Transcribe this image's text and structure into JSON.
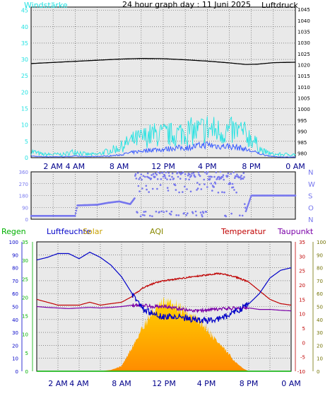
{
  "title": "24 hour graph day : 11 Juni 2025",
  "colors": {
    "plot_bg": "#e9e9e9",
    "grid": "#4a4a4a",
    "wind_avg": "#3a5cff",
    "wind_gust": "#22e2e2",
    "pressure": "#000000",
    "direction": "#7777ee",
    "humidity": "#0000c8",
    "temperature": "#c00000",
    "dewpoint": "#7a00a8",
    "solar_top": "#ffd400",
    "solar_bottom": "#ff8c00",
    "rain": "#00b000",
    "aqi": "#888800"
  },
  "chart_data": [
    {
      "type": "line",
      "name": "wind-pressure",
      "legend": {
        "left": "Windstärke",
        "right": "Luftdruck"
      },
      "x_tick_labels": [
        "2 AM",
        "4 AM",
        "8 AM",
        "12 PM",
        "4 PM",
        "8 PM",
        "0 AM"
      ],
      "left_axis": {
        "ticks": [
          0,
          5,
          10,
          15,
          20,
          25,
          30,
          35,
          40,
          45
        ],
        "range": [
          0,
          46
        ]
      },
      "right_axis": {
        "ticks": [
          980,
          985,
          990,
          995,
          1000,
          1005,
          1010,
          1015,
          1020,
          1025,
          1030,
          1035,
          1040,
          1045
        ],
        "range": [
          978,
          1046
        ]
      },
      "grid": true,
      "series": [
        {
          "name": "Luftdruck",
          "axis": "right",
          "x": [
            0,
            2,
            4,
            6,
            8,
            10,
            12,
            14,
            16,
            18,
            19.5,
            20.5,
            22,
            24
          ],
          "values": [
            1020.5,
            1021,
            1021.5,
            1022,
            1022.5,
            1022.8,
            1022.7,
            1022.2,
            1021.6,
            1020.8,
            1020.1,
            1020.2,
            1020.9,
            1021.1
          ]
        },
        {
          "name": "Böen",
          "axis": "left",
          "x": [
            0,
            1,
            2,
            3,
            4,
            5,
            6,
            7,
            8,
            9,
            10,
            11,
            12,
            13,
            14,
            15,
            16,
            17,
            18,
            19,
            20,
            21,
            22,
            23,
            24
          ],
          "values": [
            2,
            1,
            1,
            1,
            2,
            1,
            1,
            2,
            3,
            5,
            6,
            7,
            7,
            7,
            8,
            8,
            9,
            8,
            8,
            8,
            6,
            2,
            1,
            1,
            1
          ]
        },
        {
          "name": "Mittel",
          "axis": "left",
          "x": [
            0,
            1,
            2,
            3,
            4,
            5,
            6,
            7,
            8,
            9,
            10,
            11,
            12,
            13,
            14,
            15,
            16,
            17,
            18,
            19,
            20,
            21,
            22,
            23,
            24
          ],
          "values": [
            0.5,
            0.3,
            0.3,
            0.3,
            0.5,
            0.3,
            0.4,
            0.5,
            0.8,
            1.5,
            2,
            2.5,
            2.5,
            3,
            3,
            3.5,
            4,
            3.5,
            3.5,
            3,
            2,
            1,
            0.3,
            0.2,
            0.2
          ]
        }
      ]
    },
    {
      "type": "scatter",
      "name": "wind-direction",
      "x_tick_labels": [],
      "left_axis": {
        "ticks": [
          0,
          90,
          180,
          270,
          360
        ],
        "range": [
          0,
          360
        ]
      },
      "right_labels": [
        "N",
        "W",
        "S",
        "O",
        "N"
      ],
      "grid": true,
      "x": [
        0,
        2,
        4,
        4.2,
        6,
        7,
        8,
        9,
        9.5,
        10,
        10.5,
        11,
        11.5,
        12,
        13,
        14,
        15,
        16,
        17,
        18,
        19,
        19.5,
        20,
        21,
        22,
        24
      ],
      "values": [
        25,
        25,
        25,
        105,
        110,
        125,
        135,
        115,
        170,
        200,
        100,
        300,
        340,
        335,
        340,
        325,
        335,
        330,
        340,
        320,
        335,
        60,
        180,
        180,
        180,
        180
      ]
    },
    {
      "type": "area",
      "name": "weather-overview",
      "legend": [
        "Regen",
        "Luftfeuchte",
        "Solar",
        "AQI",
        "Temperatur",
        "Taupunkt"
      ],
      "x_tick_labels": [
        "2 AM",
        "4 AM",
        "8 AM",
        "12 PM",
        "4 PM",
        "8 PM",
        "0 AM"
      ],
      "left_axis_humidity": {
        "ticks": [
          0,
          10,
          20,
          30,
          40,
          50,
          60,
          70,
          80,
          90,
          100
        ],
        "range": [
          0,
          100
        ]
      },
      "left_axis_rain": {
        "ticks": [
          0,
          5,
          10,
          15,
          20,
          25,
          30,
          35
        ],
        "range": [
          0,
          35
        ]
      },
      "right_axis_temp": {
        "ticks": [
          -10,
          -5,
          0,
          5,
          10,
          15,
          20,
          25,
          30,
          35
        ],
        "range": [
          -10,
          35
        ]
      },
      "right_axis_solar": {
        "ticks": [
          0,
          10,
          20,
          30,
          40,
          50,
          60,
          70,
          80,
          90,
          100
        ],
        "range": [
          0,
          100
        ]
      },
      "grid": true,
      "series": [
        {
          "name": "Luftfeuchte",
          "x": [
            0,
            1,
            2,
            3,
            4,
            5,
            6,
            7,
            8,
            9,
            10,
            11,
            12,
            13,
            14,
            15,
            16,
            17,
            18,
            19,
            20,
            21,
            22,
            23,
            24
          ],
          "values": [
            86,
            88,
            91,
            91,
            87,
            92,
            88,
            82,
            73,
            60,
            48,
            44,
            42,
            43,
            41,
            40,
            39,
            40,
            43,
            47,
            52,
            60,
            72,
            78,
            80
          ]
        },
        {
          "name": "Temperatur",
          "x": [
            0,
            1,
            2,
            3,
            4,
            5,
            6,
            7,
            8,
            9,
            10,
            11,
            12,
            13,
            14,
            15,
            16,
            17,
            18,
            19,
            20,
            21,
            22,
            23,
            24
          ],
          "values": [
            15,
            14,
            13,
            13,
            13,
            14,
            13,
            13.5,
            14,
            16,
            19,
            20.5,
            21.5,
            22,
            22.5,
            23,
            23.5,
            24,
            23.5,
            22.5,
            21,
            18,
            15,
            13.5,
            13
          ]
        },
        {
          "name": "Taupunkt",
          "x": [
            0,
            1,
            2,
            3,
            4,
            5,
            6,
            7,
            8,
            9,
            10,
            11,
            12,
            13,
            14,
            15,
            16,
            17,
            18,
            19,
            20,
            21,
            22,
            23,
            24
          ],
          "values": [
            12.5,
            12.2,
            12,
            11.8,
            12,
            12.2,
            12,
            12.2,
            12.5,
            13,
            13,
            12.5,
            12.5,
            12,
            11.5,
            11,
            11.2,
            11.5,
            11.8,
            12,
            12,
            11.5,
            11.5,
            11.2,
            11
          ]
        },
        {
          "name": "Solar",
          "x": [
            0,
            6,
            7,
            8,
            9,
            10,
            11,
            12,
            13,
            14,
            15,
            16,
            17,
            18,
            19,
            19.5,
            20,
            24
          ],
          "values": [
            0,
            0,
            1,
            4,
            18,
            34,
            46,
            52,
            51,
            46,
            40,
            33,
            23,
            14,
            5,
            2,
            0,
            0
          ]
        },
        {
          "name": "Regen",
          "x": [
            0,
            24
          ],
          "values": [
            0,
            0
          ]
        },
        {
          "name": "AQI",
          "x": [],
          "values": []
        }
      ]
    }
  ]
}
